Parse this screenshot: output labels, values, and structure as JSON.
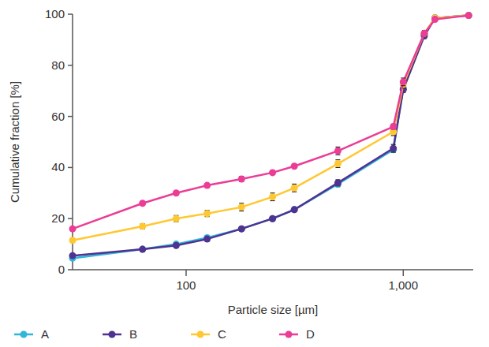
{
  "chart_data": {
    "type": "line",
    "log": "x",
    "x_label": "Particle size [µm]",
    "y_label": "Cumulative fraction [%]",
    "x": [
      30,
      63,
      90,
      125,
      180,
      250,
      315,
      500,
      900,
      1000,
      1250,
      1400,
      2000
    ],
    "xlim": [
      30,
      2100
    ],
    "xticks": [
      100,
      {
        "value": 1000,
        "label": "1,000"
      }
    ],
    "ylim": [
      0,
      100
    ],
    "yticks": [
      0,
      20,
      40,
      60,
      80,
      100
    ],
    "grid": false,
    "legend": "bottom",
    "marker": "circle",
    "series": [
      {
        "name": "A",
        "color": "#2fb6d9",
        "values": [
          4.5,
          8,
          10,
          12.5,
          16,
          20,
          23.5,
          33.5,
          47,
          71,
          92,
          98.5,
          99.5
        ],
        "errors": [
          0.5,
          0.5,
          0.5,
          0.5,
          0.5,
          0.5,
          0.5,
          1,
          1,
          1,
          1,
          0.5,
          0.3
        ]
      },
      {
        "name": "B",
        "color": "#503291",
        "values": [
          5.5,
          8,
          9.5,
          12,
          16,
          20,
          23.5,
          34,
          47.5,
          70.5,
          91.5,
          98.5,
          99.5
        ],
        "errors": [
          0.5,
          0.5,
          0.5,
          0.5,
          0.5,
          0.5,
          0.5,
          1.2,
          1.5,
          1.2,
          1,
          0.5,
          0.3
        ]
      },
      {
        "name": "C",
        "color": "#ffc832",
        "values": [
          11.5,
          17,
          20,
          22,
          24.5,
          28.5,
          32,
          41.5,
          54,
          72.5,
          92.5,
          98.5,
          99.5
        ],
        "errors": [
          0.7,
          1,
          1.2,
          1.2,
          1.5,
          1.5,
          1.5,
          1.5,
          1.5,
          1.5,
          1,
          0.5,
          0.3
        ]
      },
      {
        "name": "D",
        "color": "#eb3c96",
        "values": [
          16,
          26,
          30,
          33,
          35.5,
          38,
          40.5,
          46.5,
          56,
          73.5,
          92.5,
          98,
          99.5
        ],
        "errors": [
          0.5,
          0.7,
          0.7,
          0.7,
          1,
          0.8,
          0.8,
          1.5,
          1,
          1.5,
          1,
          0.5,
          0.3
        ]
      }
    ]
  }
}
